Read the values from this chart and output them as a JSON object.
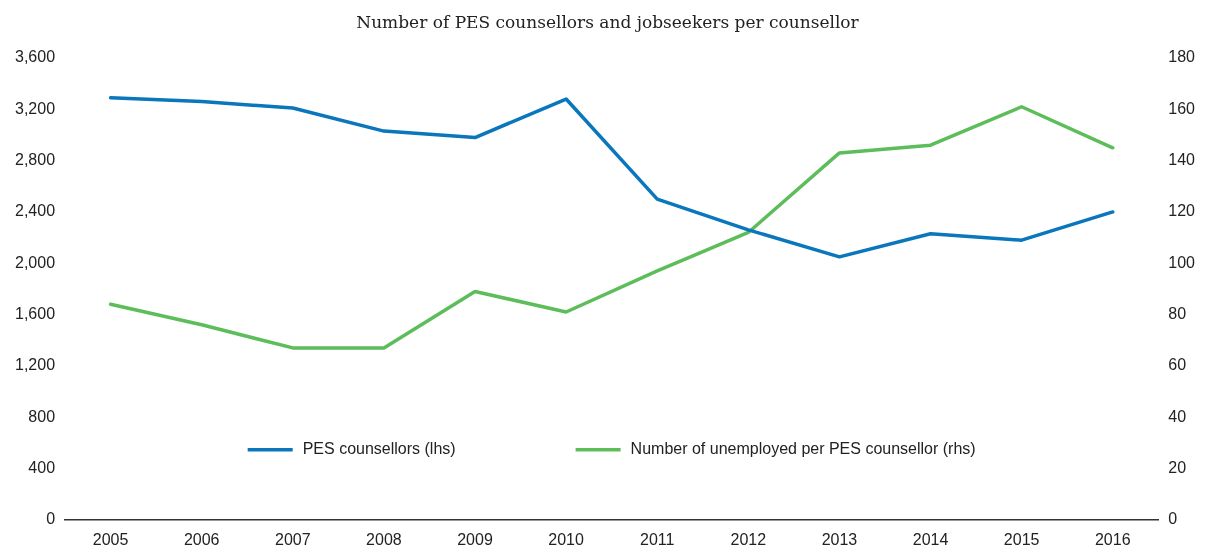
{
  "chart_data": {
    "type": "line",
    "title": "Number of PES counsellors and jobseekers per counsellor",
    "categories": [
      "2005",
      "2006",
      "2007",
      "2008",
      "2009",
      "2010",
      "2011",
      "2012",
      "2013",
      "2014",
      "2015",
      "2016"
    ],
    "series": [
      {
        "name": "PES counsellors (lhs)",
        "color": "#0a76bc",
        "values": [
          3290,
          3260,
          3210,
          3030,
          2980,
          3280,
          2500,
          2260,
          2050,
          2230,
          2180,
          2400
        ]
      },
      {
        "name": "Number of unemployed per PES counsellor (rhs)",
        "color": "#5dbd5a",
        "axis": "y2",
        "values": [
          84,
          76,
          67,
          67,
          89,
          81,
          97,
          112,
          143,
          146,
          161,
          145
        ]
      }
    ],
    "ylim": [
      0,
      3600
    ],
    "yticks": [
      {
        "value": 0,
        "label": "0"
      },
      {
        "value": 400,
        "label": "400"
      },
      {
        "value": 800,
        "label": "800"
      },
      {
        "value": 1200,
        "label": "1,200"
      },
      {
        "value": 1600,
        "label": "1,600"
      },
      {
        "value": 2000,
        "label": "2,000"
      },
      {
        "value": 2400,
        "label": "2,400"
      },
      {
        "value": 2800,
        "label": "2,800"
      },
      {
        "value": 3200,
        "label": "3,200"
      },
      {
        "value": 3600,
        "label": "3,600"
      }
    ],
    "y2lim": [
      0,
      180
    ],
    "y2ticks": [
      0,
      20,
      40,
      60,
      80,
      100,
      120,
      140,
      160,
      180
    ],
    "grid": false,
    "legend": "bottom",
    "marker": "none",
    "line_style": "solid"
  }
}
